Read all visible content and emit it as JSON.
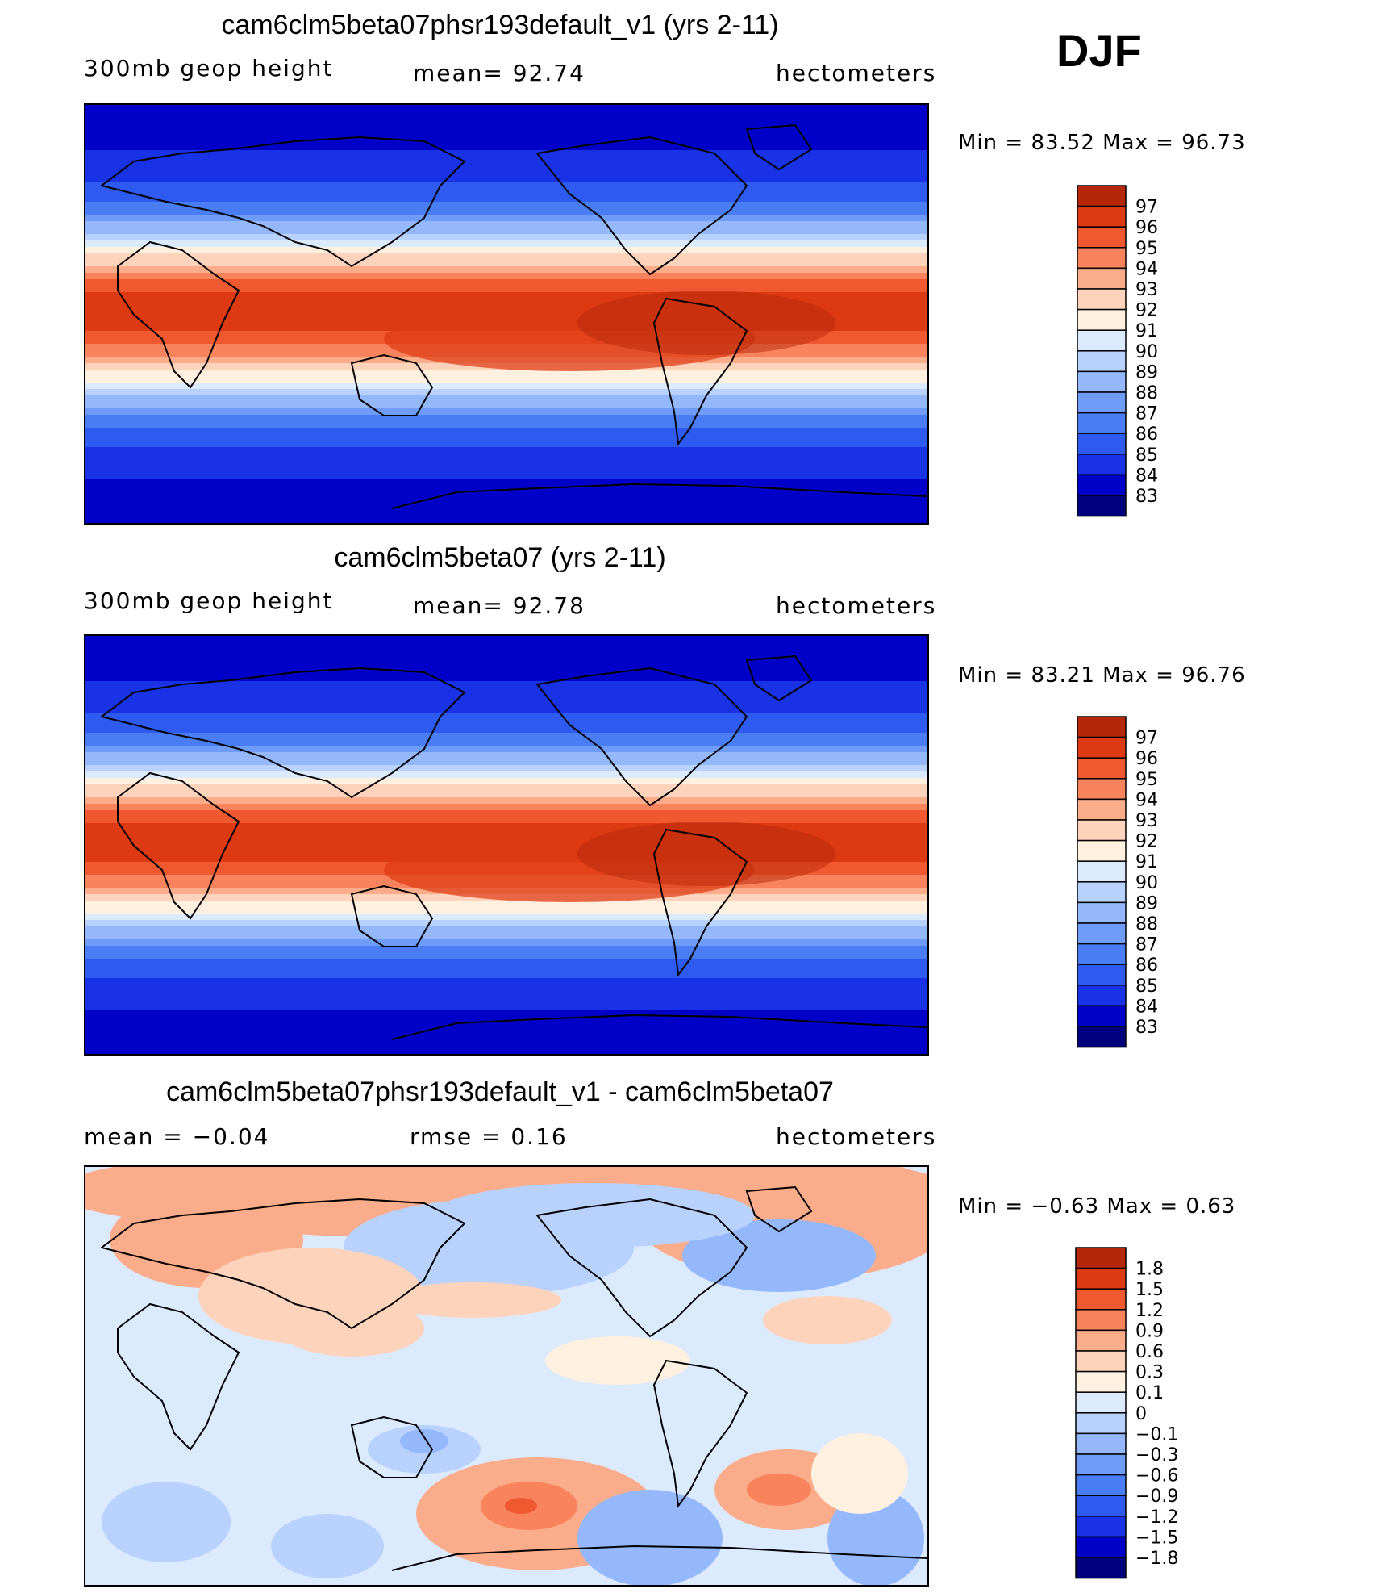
{
  "season": "DJF",
  "panels": [
    {
      "title": "cam6clm5beta07phsr193default_v1 (yrs 2-11)",
      "left_label": "300mb  geop  height",
      "mid_label": "mean=   92.74",
      "right_label": "hectometers",
      "minmax": "Min  =    83.52  Max  =    96.73",
      "kind": "abs",
      "colors": [
        "#00007f",
        "#0000c8",
        "#1a32e6",
        "#2e5af0",
        "#4a7df4",
        "#6f9cf8",
        "#94b8fb",
        "#b8d2fd",
        "#dceafe",
        "#fff0e0",
        "#fdd3bb",
        "#fbac8a",
        "#f8835c",
        "#f0592f",
        "#dd3912",
        "#b52708",
        "#850e05"
      ],
      "chart_data": {
        "type": "heatmap",
        "title": "cam6clm5beta07phsr193default_v1 (yrs 2-11)",
        "field": "300mb geop height",
        "units": "hectometers",
        "mean": 92.74,
        "min": 83.52,
        "max": 96.73,
        "colorbar_labels": [
          "97",
          "96",
          "95",
          "94",
          "93",
          "92",
          "91",
          "90",
          "89",
          "88",
          "87",
          "86",
          "85",
          "84",
          "83"
        ]
      }
    },
    {
      "title": "cam6clm5beta07 (yrs 2-11)",
      "left_label": "300mb  geop  height",
      "mid_label": "mean=   92.78",
      "right_label": "hectometers",
      "minmax": "Min  =    83.21  Max  =    96.76",
      "kind": "abs",
      "colors": [
        "#00007f",
        "#0000c8",
        "#1a32e6",
        "#2e5af0",
        "#4a7df4",
        "#6f9cf8",
        "#94b8fb",
        "#b8d2fd",
        "#dceafe",
        "#fff0e0",
        "#fdd3bb",
        "#fbac8a",
        "#f8835c",
        "#f0592f",
        "#dd3912",
        "#b52708",
        "#850e05"
      ],
      "chart_data": {
        "type": "heatmap",
        "title": "cam6clm5beta07 (yrs 2-11)",
        "field": "300mb geop height",
        "units": "hectometers",
        "mean": 92.78,
        "min": 83.21,
        "max": 96.76,
        "colorbar_labels": [
          "97",
          "96",
          "95",
          "94",
          "93",
          "92",
          "91",
          "90",
          "89",
          "88",
          "87",
          "86",
          "85",
          "84",
          "83"
        ]
      }
    },
    {
      "title": "cam6clm5beta07phsr193default_v1 - cam6clm5beta07",
      "left_label": "mean  =    −0.04",
      "mid_label": "rmse  =     0.16",
      "right_label": "hectometers",
      "minmax": "Min  =    −0.63  Max  =      0.63",
      "kind": "diff",
      "colors": [
        "#00007f",
        "#0000c8",
        "#1a32e6",
        "#2e5af0",
        "#4a7df4",
        "#6f9cf8",
        "#94b8fb",
        "#b8d2fd",
        "#dceafe",
        "#fff0e0",
        "#fdd3bb",
        "#fbac8a",
        "#f8835c",
        "#f0592f",
        "#dd3912",
        "#b52708",
        "#850e05"
      ],
      "chart_data": {
        "type": "heatmap",
        "title": "cam6clm5beta07phsr193default_v1 - cam6clm5beta07",
        "units": "hectometers",
        "mean": -0.04,
        "rmse": 0.16,
        "min": -0.63,
        "max": 0.63,
        "colorbar_labels": [
          "1.8",
          "1.5",
          "1.2",
          "0.9",
          "0.6",
          "0.3",
          "0.1",
          "0",
          "−0.1",
          "−0.3",
          "−0.6",
          "−0.9",
          "−1.2",
          "−1.5",
          "−1.8"
        ]
      }
    }
  ]
}
